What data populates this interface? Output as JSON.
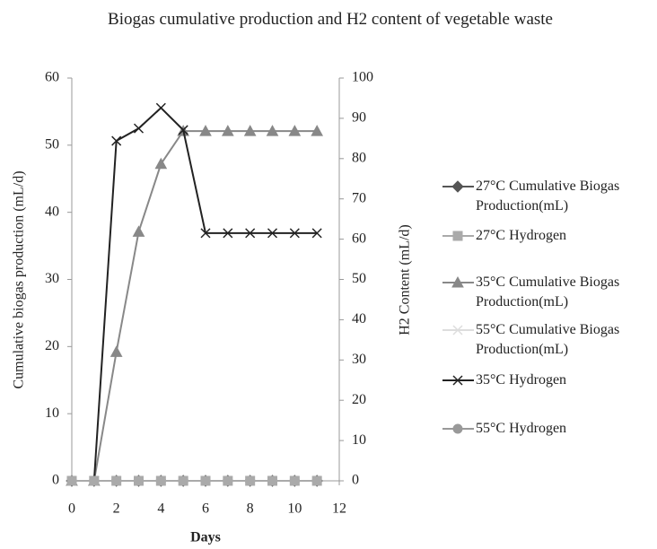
{
  "chart_data": {
    "type": "line",
    "title": "Biogas cumulative production and H2 content of vegetable waste",
    "xlabel": "Days",
    "ylabel": "Cumulative biogas production (mL/d)",
    "y2label": "H2 Content (mL/d)",
    "x": [
      0,
      1,
      2,
      3,
      4,
      5,
      6,
      7,
      8,
      9,
      10,
      11
    ],
    "xlim": [
      0,
      12
    ],
    "xticks": [
      0,
      2,
      4,
      6,
      8,
      10,
      12
    ],
    "ylim": [
      0,
      60
    ],
    "yticks": [
      0,
      10,
      20,
      30,
      40,
      50,
      60
    ],
    "y2lim": [
      0,
      100
    ],
    "y2ticks": [
      0,
      10,
      20,
      30,
      40,
      50,
      60,
      70,
      80,
      90,
      100
    ],
    "legend": "right",
    "series": [
      {
        "name": "27°C Cumulative Biogas Production(mL)",
        "color": "#555555",
        "marker": "diamond",
        "values": [
          0,
          0,
          0,
          0,
          0,
          0,
          0,
          0,
          0,
          0,
          0,
          0
        ]
      },
      {
        "name": "27°C Hydrogen",
        "color": "#aaaaaa",
        "marker": "square",
        "axis": "y2",
        "values": [
          0,
          0,
          0,
          0,
          0,
          0,
          0,
          0,
          0,
          0,
          0,
          0
        ]
      },
      {
        "name": "35°C Cumulative Biogas Production(mL)",
        "color": "#888888",
        "marker": "triangle",
        "values": [
          0,
          0,
          19.2,
          37.1,
          47.2,
          52.1,
          52.1,
          52.1,
          52.1,
          52.1,
          52.1,
          52.1
        ]
      },
      {
        "name": "55°C Cumulative Biogas Production(mL)",
        "color": "#dddddd",
        "marker": "x",
        "values": [
          0,
          0,
          0,
          0,
          0,
          0,
          0,
          0,
          0,
          0,
          0,
          0
        ]
      },
      {
        "name": "35°C Hydrogen",
        "color": "#222222",
        "marker": "x",
        "axis": "y2",
        "values": [
          0,
          0,
          84.4,
          87.5,
          92.6,
          87.1,
          61.5,
          61.5,
          61.5,
          61.5,
          61.5,
          61.5
        ]
      },
      {
        "name": "55°C Hydrogen",
        "color": "#999999",
        "marker": "circle",
        "axis": "y2",
        "values": [
          0,
          0,
          0,
          0,
          0,
          0,
          0,
          0,
          0,
          0,
          0,
          0
        ]
      }
    ]
  }
}
